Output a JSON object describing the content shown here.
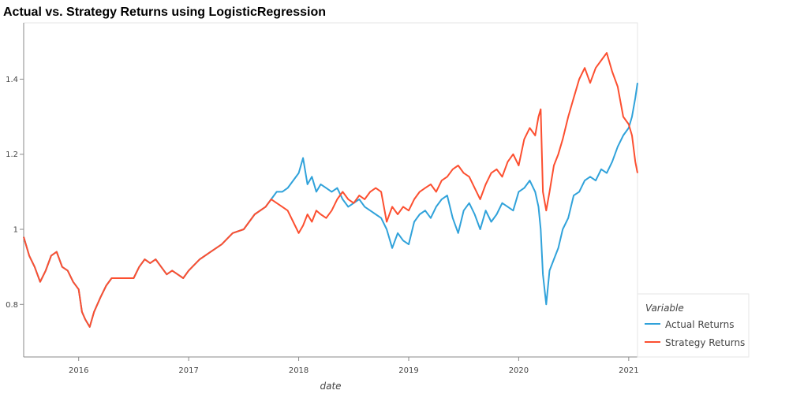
{
  "chart_data": {
    "type": "line",
    "title": "Actual vs. Strategy Returns using LogisticRegression",
    "xlabel": "date",
    "ylabel": "",
    "xlim": [
      2015.5,
      2021.08
    ],
    "ylim": [
      0.66,
      1.55
    ],
    "x_ticks": [
      {
        "value": 2016,
        "label": "2016"
      },
      {
        "value": 2017,
        "label": "2017"
      },
      {
        "value": 2018,
        "label": "2018"
      },
      {
        "value": 2019,
        "label": "2019"
      },
      {
        "value": 2020,
        "label": "2020"
      },
      {
        "value": 2021,
        "label": "2021"
      }
    ],
    "y_ticks": [
      {
        "value": 0.8,
        "label": "0.8"
      },
      {
        "value": 1.0,
        "label": "1"
      },
      {
        "value": 1.2,
        "label": "1.2"
      },
      {
        "value": 1.4,
        "label": "1.4"
      }
    ],
    "grid": false,
    "legend": {
      "title": "Variable",
      "position": "bottom-right outside"
    },
    "series": [
      {
        "name": "Actual Returns",
        "color": "#30a2da",
        "x": [
          2015.5,
          2015.55,
          2015.6,
          2015.65,
          2015.7,
          2015.75,
          2015.8,
          2015.85,
          2015.9,
          2015.95,
          2016.0,
          2016.03,
          2016.06,
          2016.1,
          2016.14,
          2016.2,
          2016.25,
          2016.3,
          2016.35,
          2016.4,
          2016.5,
          2016.55,
          2016.6,
          2016.65,
          2016.7,
          2016.75,
          2016.8,
          2016.85,
          2016.9,
          2016.95,
          2017.0,
          2017.1,
          2017.2,
          2017.3,
          2017.4,
          2017.5,
          2017.6,
          2017.7,
          2017.75,
          2017.8,
          2017.85,
          2017.9,
          2017.95,
          2018.0,
          2018.04,
          2018.08,
          2018.12,
          2018.16,
          2018.2,
          2018.25,
          2018.3,
          2018.35,
          2018.4,
          2018.45,
          2018.5,
          2018.55,
          2018.6,
          2018.65,
          2018.7,
          2018.75,
          2018.8,
          2018.85,
          2018.9,
          2018.95,
          2019.0,
          2019.05,
          2019.1,
          2019.15,
          2019.2,
          2019.25,
          2019.3,
          2019.35,
          2019.4,
          2019.45,
          2019.5,
          2019.55,
          2019.6,
          2019.65,
          2019.7,
          2019.75,
          2019.8,
          2019.85,
          2019.9,
          2019.95,
          2020.0,
          2020.05,
          2020.1,
          2020.15,
          2020.18,
          2020.2,
          2020.22,
          2020.25,
          2020.28,
          2020.32,
          2020.36,
          2020.4,
          2020.45,
          2020.5,
          2020.55,
          2020.6,
          2020.65,
          2020.7,
          2020.75,
          2020.8,
          2020.85,
          2020.9,
          2020.95,
          2021.0,
          2021.03,
          2021.06,
          2021.08
        ],
        "values": [
          0.98,
          0.93,
          0.9,
          0.86,
          0.89,
          0.93,
          0.94,
          0.9,
          0.89,
          0.86,
          0.84,
          0.78,
          0.76,
          0.74,
          0.78,
          0.82,
          0.85,
          0.87,
          0.87,
          0.87,
          0.87,
          0.9,
          0.92,
          0.91,
          0.92,
          0.9,
          0.88,
          0.89,
          0.88,
          0.87,
          0.89,
          0.92,
          0.94,
          0.96,
          0.99,
          1.0,
          1.04,
          1.06,
          1.08,
          1.1,
          1.1,
          1.11,
          1.13,
          1.15,
          1.19,
          1.12,
          1.14,
          1.1,
          1.12,
          1.11,
          1.1,
          1.11,
          1.08,
          1.06,
          1.07,
          1.08,
          1.06,
          1.05,
          1.04,
          1.03,
          1.0,
          0.95,
          0.99,
          0.97,
          0.96,
          1.02,
          1.04,
          1.05,
          1.03,
          1.06,
          1.08,
          1.09,
          1.03,
          0.99,
          1.05,
          1.07,
          1.04,
          1.0,
          1.05,
          1.02,
          1.04,
          1.07,
          1.06,
          1.05,
          1.1,
          1.11,
          1.13,
          1.1,
          1.06,
          1.0,
          0.88,
          0.8,
          0.89,
          0.92,
          0.95,
          1.0,
          1.03,
          1.09,
          1.1,
          1.13,
          1.14,
          1.13,
          1.16,
          1.15,
          1.18,
          1.22,
          1.25,
          1.27,
          1.3,
          1.35,
          1.39
        ]
      },
      {
        "name": "Strategy Returns",
        "color": "#fc4f30",
        "x": [
          2015.5,
          2015.55,
          2015.6,
          2015.65,
          2015.7,
          2015.75,
          2015.8,
          2015.85,
          2015.9,
          2015.95,
          2016.0,
          2016.03,
          2016.06,
          2016.1,
          2016.14,
          2016.2,
          2016.25,
          2016.3,
          2016.35,
          2016.4,
          2016.5,
          2016.55,
          2016.6,
          2016.65,
          2016.7,
          2016.75,
          2016.8,
          2016.85,
          2016.9,
          2016.95,
          2017.0,
          2017.1,
          2017.2,
          2017.3,
          2017.4,
          2017.5,
          2017.6,
          2017.7,
          2017.75,
          2017.8,
          2017.85,
          2017.9,
          2017.95,
          2018.0,
          2018.04,
          2018.08,
          2018.12,
          2018.16,
          2018.2,
          2018.25,
          2018.3,
          2018.35,
          2018.4,
          2018.45,
          2018.5,
          2018.55,
          2018.6,
          2018.65,
          2018.7,
          2018.75,
          2018.8,
          2018.85,
          2018.9,
          2018.95,
          2019.0,
          2019.05,
          2019.1,
          2019.15,
          2019.2,
          2019.25,
          2019.3,
          2019.35,
          2019.4,
          2019.45,
          2019.5,
          2019.55,
          2019.6,
          2019.65,
          2019.7,
          2019.75,
          2019.8,
          2019.85,
          2019.9,
          2019.95,
          2020.0,
          2020.05,
          2020.1,
          2020.15,
          2020.18,
          2020.2,
          2020.22,
          2020.25,
          2020.28,
          2020.32,
          2020.36,
          2020.4,
          2020.45,
          2020.5,
          2020.55,
          2020.6,
          2020.65,
          2020.7,
          2020.75,
          2020.8,
          2020.85,
          2020.9,
          2020.95,
          2021.0,
          2021.03,
          2021.06,
          2021.08
        ],
        "values": [
          0.98,
          0.93,
          0.9,
          0.86,
          0.89,
          0.93,
          0.94,
          0.9,
          0.89,
          0.86,
          0.84,
          0.78,
          0.76,
          0.74,
          0.78,
          0.82,
          0.85,
          0.87,
          0.87,
          0.87,
          0.87,
          0.9,
          0.92,
          0.91,
          0.92,
          0.9,
          0.88,
          0.89,
          0.88,
          0.87,
          0.89,
          0.92,
          0.94,
          0.96,
          0.99,
          1.0,
          1.04,
          1.06,
          1.08,
          1.07,
          1.06,
          1.05,
          1.02,
          0.99,
          1.01,
          1.04,
          1.02,
          1.05,
          1.04,
          1.03,
          1.05,
          1.08,
          1.1,
          1.08,
          1.07,
          1.09,
          1.08,
          1.1,
          1.11,
          1.1,
          1.02,
          1.06,
          1.04,
          1.06,
          1.05,
          1.08,
          1.1,
          1.11,
          1.12,
          1.1,
          1.13,
          1.14,
          1.16,
          1.17,
          1.15,
          1.14,
          1.11,
          1.08,
          1.12,
          1.15,
          1.16,
          1.14,
          1.18,
          1.2,
          1.17,
          1.24,
          1.27,
          1.25,
          1.3,
          1.32,
          1.1,
          1.05,
          1.1,
          1.17,
          1.2,
          1.24,
          1.3,
          1.35,
          1.4,
          1.43,
          1.39,
          1.43,
          1.45,
          1.47,
          1.42,
          1.38,
          1.3,
          1.28,
          1.25,
          1.18,
          1.15
        ]
      }
    ]
  }
}
